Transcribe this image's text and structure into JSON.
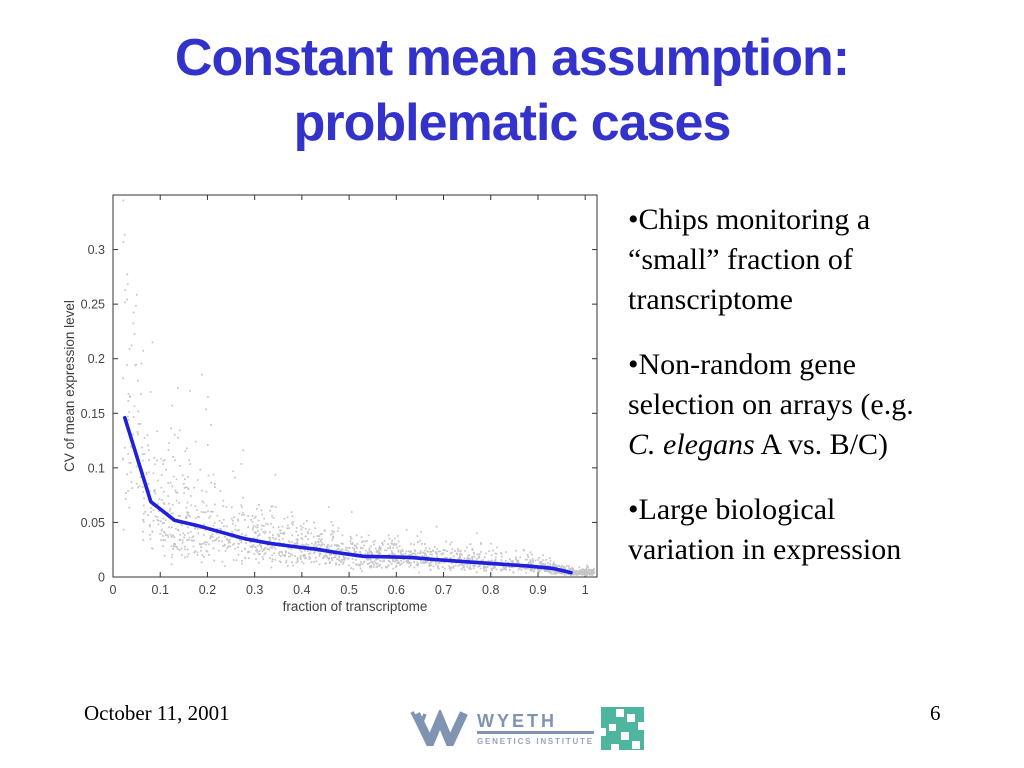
{
  "slide": {
    "title": {
      "line1": "Constant mean assumption:",
      "line2": "problematic cases",
      "color": "#3333cc"
    },
    "bullets": [
      {
        "segments": [
          {
            "t": "•Chips monitoring a\n“small” fraction of\ntranscriptome",
            "i": false
          }
        ]
      },
      {
        "segments": [
          {
            "t": "•Non-random gene\nselection on arrays (e.g.\n",
            "i": false
          },
          {
            "t": "C. elegans",
            "i": true
          },
          {
            "t": " A vs. B/C)",
            "i": false
          }
        ]
      },
      {
        "segments": [
          {
            "t": "•Large biological\nvariation in expression",
            "i": false
          }
        ]
      }
    ],
    "footer": {
      "date": "October 11, 2001",
      "page_number": "6"
    },
    "logo": {
      "brand": "WYETH",
      "subtitle": "GENETICS INSTITUTE",
      "mark_color": "#8093b3",
      "subtitle_color": "#96a4c0",
      "chip_color": "#4eb69e"
    }
  },
  "chart_data": {
    "type": "scatter",
    "title": "",
    "xlabel": "fraction of transcriptome",
    "ylabel": "CV of mean expression level",
    "xlim": [
      0,
      1.025
    ],
    "ylim": [
      0,
      0.35
    ],
    "grid": false,
    "xticks": [
      0,
      0.1,
      0.2,
      0.3,
      0.4,
      0.5,
      0.6,
      0.7,
      0.8,
      0.9,
      1
    ],
    "xtick_labels": [
      "0",
      "0.1",
      "0.2",
      "0.3",
      "0.4",
      "0.5",
      "0.6",
      "0.7",
      "0.8",
      "0.9",
      "1"
    ],
    "yticks": [
      0,
      0.05,
      0.1,
      0.15,
      0.2,
      0.25,
      0.3
    ],
    "ytick_labels": [
      "0",
      "0.05",
      "0.1",
      "0.15",
      "0.2",
      "0.25",
      "0.3"
    ],
    "trend_line": {
      "name": "mean CV trend",
      "color": "#1f1fdc",
      "x": [
        0.025,
        0.08,
        0.13,
        0.18,
        0.23,
        0.28,
        0.33,
        0.38,
        0.43,
        0.48,
        0.53,
        0.58,
        0.63,
        0.68,
        0.73,
        0.78,
        0.83,
        0.88,
        0.93,
        0.97
      ],
      "y": [
        0.146,
        0.069,
        0.052,
        0.047,
        0.041,
        0.035,
        0.031,
        0.028,
        0.0255,
        0.022,
        0.019,
        0.0185,
        0.018,
        0.016,
        0.0145,
        0.013,
        0.0115,
        0.01,
        0.008,
        0.004
      ]
    },
    "scatter": {
      "name": "per-gene CV values",
      "color": "#c5c5c5",
      "n": 1750,
      "end_cluster_n": 130,
      "seed": 11,
      "sigma_left": 0.52,
      "sigma_right": 0.38,
      "x_min": 0.02,
      "y_max": 0.345
    }
  }
}
